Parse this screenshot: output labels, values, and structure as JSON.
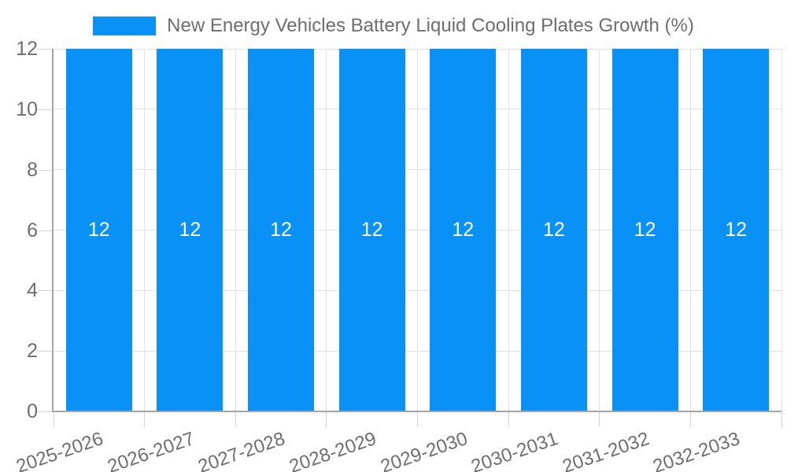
{
  "legend": {
    "label": "New Energy Vehicles Battery Liquid Cooling Plates Growth (%)"
  },
  "chart_data": {
    "type": "bar",
    "title": "New Energy Vehicles Battery Liquid Cooling Plates Growth (%)",
    "categories": [
      "2025-2026",
      "2026-2027",
      "2027-2028",
      "2028-2029",
      "2029-2030",
      "2030-2031",
      "2031-2032",
      "2032-2033"
    ],
    "values": [
      12,
      12,
      12,
      12,
      12,
      12,
      12,
      12
    ],
    "bar_value_labels": [
      "12",
      "12",
      "12",
      "12",
      "12",
      "12",
      "12",
      "12"
    ],
    "xlabel": "",
    "ylabel": "",
    "ylim": [
      0,
      12
    ],
    "yticks": [
      0,
      2,
      4,
      6,
      8,
      10,
      12
    ],
    "grid": true,
    "legend_position": "top",
    "colors": {
      "bar": "#0a91f5",
      "grid": "#e2e2e2",
      "axis": "#a5a5a5",
      "tick": "#d4d4d4",
      "text": "#6e6e6e",
      "bar_label": "#ffffff"
    }
  }
}
